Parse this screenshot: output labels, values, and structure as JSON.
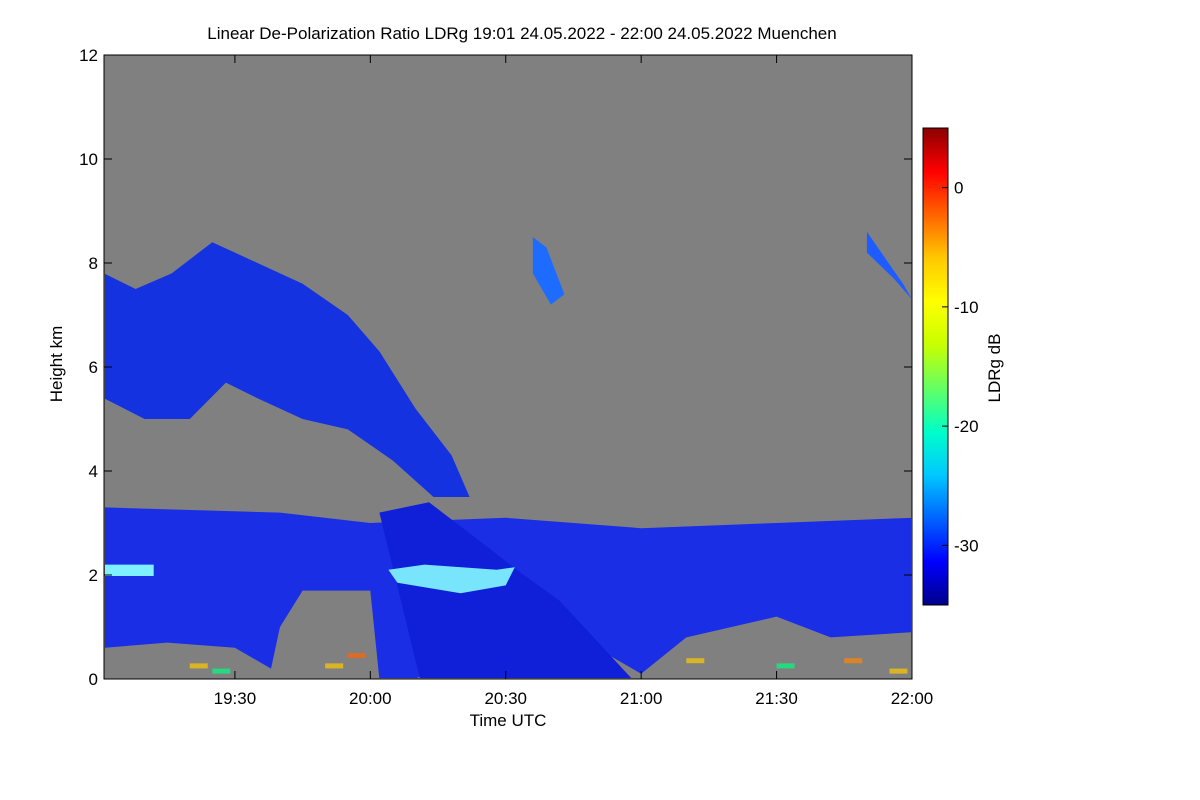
{
  "chart_data": {
    "type": "heatmap",
    "title": "Linear De-Polarization Ratio LDRg   19:01 24.05.2022 - 22:00 24.05.2022 Muenchen",
    "xlabel": "Time UTC",
    "ylabel": "Height km",
    "x_ticks": [
      "19:30",
      "20:00",
      "20:30",
      "21:00",
      "21:30",
      "22:00"
    ],
    "x_tick_minutes": [
      30,
      60,
      90,
      120,
      150,
      180
    ],
    "xlim_minutes": [
      1,
      180
    ],
    "y_ticks": [
      0,
      2,
      4,
      6,
      8,
      10,
      12
    ],
    "ylim": [
      0,
      12
    ],
    "missing_color": "#808080",
    "colorbar": {
      "label": "LDRg dB",
      "ticks": [
        0,
        -10,
        -20,
        -30
      ],
      "range": [
        -35,
        5
      ],
      "colors": [
        "#00008b",
        "#0000ff",
        "#0064ff",
        "#00c8ff",
        "#00ffc8",
        "#64ff64",
        "#c8ff00",
        "#ffff00",
        "#ffc800",
        "#ff6400",
        "#ff0000",
        "#8b0000"
      ]
    }
  }
}
